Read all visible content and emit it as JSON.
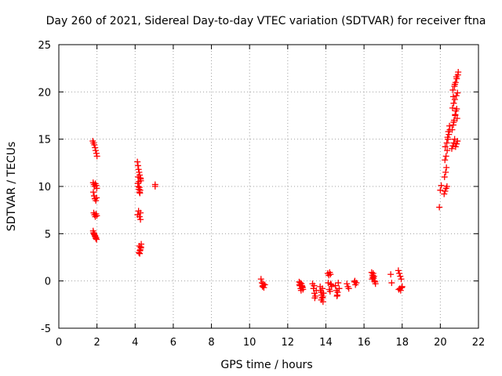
{
  "chart_data": {
    "type": "scatter",
    "title": "Day 260 of 2021, Sidereal Day-to-day VTEC variation (SDTVAR) for receiver ftna",
    "xlabel": "GPS time / hours",
    "ylabel": "SDTVAR / TECUs",
    "xlim": [
      0,
      22
    ],
    "ylim": [
      -5,
      25
    ],
    "xticks": [
      0,
      2,
      4,
      6,
      8,
      10,
      12,
      14,
      16,
      18,
      20,
      22
    ],
    "yticks": [
      -5,
      0,
      5,
      10,
      15,
      20,
      25
    ],
    "grid": true,
    "marker": "+",
    "marker_color": "#ff0000",
    "series": [
      {
        "name": "SDTVAR",
        "x": [
          1.78,
          1.82,
          1.86,
          1.9,
          1.93,
          1.97,
          2.0,
          1.8,
          1.84,
          1.88,
          1.92,
          1.96,
          1.99,
          1.81,
          1.85,
          1.89,
          1.94,
          1.98,
          1.83,
          1.87,
          1.91,
          1.95,
          1.99,
          1.8,
          1.85,
          1.9,
          1.95,
          1.82,
          1.86,
          1.9,
          1.94,
          1.98,
          4.12,
          4.15,
          4.18,
          4.21,
          4.24,
          4.27,
          4.3,
          4.14,
          4.17,
          4.2,
          4.23,
          4.26,
          4.29,
          4.16,
          4.19,
          4.22,
          4.25,
          4.28,
          4.13,
          4.18,
          4.23,
          4.28,
          4.2,
          4.25,
          4.3,
          4.22,
          4.27,
          4.32,
          4.24,
          4.3,
          5.05,
          5.05,
          10.6,
          10.65,
          10.7,
          10.75,
          10.8,
          10.68,
          10.72,
          12.6,
          12.64,
          12.68,
          12.72,
          12.76,
          12.8,
          12.62,
          12.7,
          12.78,
          12.66,
          12.74,
          13.3,
          13.35,
          13.4,
          13.45,
          13.5,
          13.38,
          13.42,
          13.7,
          13.75,
          13.8,
          13.85,
          13.72,
          13.78,
          13.82,
          13.88,
          13.76,
          13.84,
          14.1,
          14.15,
          14.2,
          14.25,
          14.3,
          14.18,
          14.22,
          14.28,
          14.12,
          14.24,
          14.5,
          14.55,
          14.6,
          14.65,
          14.7,
          14.58,
          14.62,
          15.1,
          15.15,
          15.2,
          15.5,
          15.55,
          15.6,
          15.52,
          16.4,
          16.45,
          16.5,
          16.55,
          16.6,
          16.48,
          16.52,
          16.42,
          16.58,
          16.46,
          17.4,
          17.45,
          17.8,
          17.85,
          17.9,
          17.95,
          18.0,
          17.88,
          17.92,
          17.82,
          17.98,
          19.95,
          20.0,
          20.05,
          20.2,
          20.25,
          20.3,
          20.35,
          20.22,
          20.28,
          20.32,
          20.24,
          20.3,
          20.36,
          20.26,
          20.34,
          20.4,
          20.45,
          20.5,
          20.38,
          20.42,
          20.48,
          20.6,
          20.65,
          20.7,
          20.75,
          20.8,
          20.85,
          20.9,
          20.62,
          20.68,
          20.72,
          20.78,
          20.82,
          20.88,
          20.64,
          20.7,
          20.76,
          20.84,
          20.9,
          20.66,
          20.74,
          20.8,
          20.86,
          20.92,
          20.7,
          20.78,
          20.86,
          20.94,
          20.68,
          20.76,
          20.84
        ],
        "y": [
          14.8,
          14.6,
          14.4,
          14.1,
          13.8,
          13.5,
          13.2,
          10.4,
          10.2,
          10.0,
          10.3,
          10.1,
          9.8,
          9.4,
          9.0,
          8.7,
          8.5,
          8.8,
          7.2,
          7.0,
          6.8,
          7.1,
          6.9,
          5.3,
          5.0,
          4.8,
          4.6,
          5.1,
          4.9,
          4.7,
          4.5,
          4.4,
          12.6,
          12.2,
          11.8,
          11.5,
          11.2,
          10.9,
          10.6,
          10.3,
          10.0,
          9.7,
          9.4,
          9.6,
          10.8,
          11.0,
          10.5,
          9.9,
          9.3,
          7.2,
          7.0,
          7.4,
          6.8,
          6.5,
          3.0,
          3.2,
          3.5,
          3.7,
          3.3,
          3.9,
          2.9,
          3.6,
          10.2,
          10.0,
          0.2,
          -0.2,
          -0.5,
          -0.7,
          -0.4,
          -0.6,
          -0.3,
          -0.1,
          -0.5,
          -0.8,
          -0.3,
          -0.6,
          -0.9,
          -0.4,
          -1.0,
          -0.7,
          -0.2,
          -0.5,
          -0.3,
          -0.8,
          -1.3,
          -1.6,
          -1.0,
          -0.5,
          -1.8,
          -0.6,
          -1.2,
          -1.8,
          -2.2,
          -1.0,
          -1.5,
          -0.8,
          -1.3,
          -2.0,
          -1.7,
          0.8,
          0.6,
          0.9,
          -0.3,
          -0.6,
          -0.9,
          -1.1,
          -0.4,
          -0.2,
          0.7,
          -0.5,
          -1.0,
          -1.5,
          -0.2,
          -0.8,
          -1.6,
          -1.2,
          -0.3,
          -0.6,
          -0.8,
          -0.1,
          -0.4,
          -0.2,
          0.0,
          0.9,
          0.6,
          0.3,
          0.0,
          -0.3,
          0.8,
          0.5,
          0.2,
          -0.1,
          0.4,
          0.7,
          -0.2,
          1.1,
          0.8,
          0.5,
          0.2,
          -0.6,
          -0.8,
          -1.0,
          -0.9,
          -0.7,
          7.8,
          9.6,
          10.1,
          9.2,
          9.5,
          9.8,
          10.0,
          11.0,
          11.5,
          12.0,
          12.8,
          13.2,
          13.8,
          14.2,
          14.6,
          15.0,
          15.5,
          16.0,
          15.2,
          15.8,
          16.4,
          14.0,
          14.3,
          14.6,
          15.0,
          14.2,
          14.5,
          14.8,
          16.0,
          16.5,
          17.0,
          17.5,
          18.0,
          17.2,
          18.3,
          18.8,
          19.2,
          19.6,
          19.9,
          20.2,
          20.6,
          21.0,
          21.4,
          21.8,
          16.8,
          17.6,
          18.2,
          22.1,
          19.5,
          20.8,
          21.6
        ]
      }
    ]
  }
}
